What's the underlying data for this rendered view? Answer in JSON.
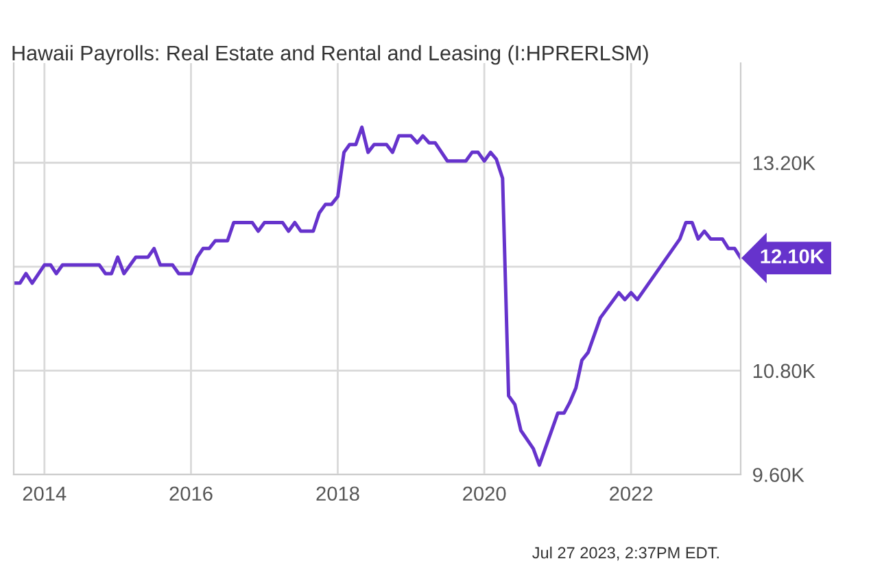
{
  "chart_data": {
    "type": "line",
    "title": "Hawaii Payrolls: Real Estate and Rental and Leasing (I:HPRERLSM)",
    "x": [
      "2013-08",
      "2013-09",
      "2013-10",
      "2013-11",
      "2014-01",
      "2014-02",
      "2014-03",
      "2014-04",
      "2014-10",
      "2014-11",
      "2014-12",
      "2015-01",
      "2015-02",
      "2015-04",
      "2015-06",
      "2015-07",
      "2015-08",
      "2015-10",
      "2015-11",
      "2016-01",
      "2016-02",
      "2016-03",
      "2016-04",
      "2016-05",
      "2016-07",
      "2016-08",
      "2016-11",
      "2016-12",
      "2017-01",
      "2017-04",
      "2017-05",
      "2017-06",
      "2017-07",
      "2017-09",
      "2017-10",
      "2017-11",
      "2017-12",
      "2018-01",
      "2018-02",
      "2018-03",
      "2018-04",
      "2018-05",
      "2018-06",
      "2018-07",
      "2018-09",
      "2018-10",
      "2018-11",
      "2019-01",
      "2019-02",
      "2019-03",
      "2019-04",
      "2019-05",
      "2019-07",
      "2019-10",
      "2019-11",
      "2019-12",
      "2020-01",
      "2020-02",
      "2020-03",
      "2020-04",
      "2020-05",
      "2020-06",
      "2020-07",
      "2020-09",
      "2020-10",
      "2021-01",
      "2021-02",
      "2021-03",
      "2021-04",
      "2021-05",
      "2021-06",
      "2021-08",
      "2021-11",
      "2021-12",
      "2022-01",
      "2022-02",
      "2022-09",
      "2022-10",
      "2022-11",
      "2022-12",
      "2023-01",
      "2023-02",
      "2023-04",
      "2023-05",
      "2023-06",
      "2023-07"
    ],
    "series": [
      {
        "color": "#6633cc",
        "values": [
          11.81,
          11.81,
          11.92,
          11.81,
          12.02,
          12.02,
          11.92,
          12.02,
          12.02,
          11.92,
          11.92,
          12.11,
          11.92,
          12.11,
          12.11,
          12.21,
          12.02,
          12.02,
          11.92,
          11.92,
          12.11,
          12.21,
          12.21,
          12.3,
          12.3,
          12.51,
          12.51,
          12.41,
          12.51,
          12.51,
          12.41,
          12.51,
          12.41,
          12.41,
          12.62,
          12.72,
          12.72,
          12.81,
          13.32,
          13.41,
          13.41,
          13.61,
          13.32,
          13.41,
          13.41,
          13.32,
          13.51,
          13.51,
          13.43,
          13.51,
          13.43,
          13.43,
          13.22,
          13.22,
          13.32,
          13.32,
          13.22,
          13.32,
          13.24,
          13.02,
          10.51,
          10.41,
          10.11,
          9.9,
          9.71,
          10.31,
          10.31,
          10.43,
          10.6,
          10.92,
          11.01,
          11.41,
          11.7,
          11.62,
          11.7,
          11.62,
          12.32,
          12.51,
          12.51,
          12.32,
          12.41,
          12.32,
          12.32,
          12.21,
          12.21,
          12.1
        ]
      }
    ],
    "xlim": [
      "2013-08",
      "2023-07"
    ],
    "xticks": [
      {
        "value": "2014-01-01",
        "label": "2014"
      },
      {
        "value": "2016-01-01",
        "label": "2016"
      },
      {
        "value": "2018-01-01",
        "label": "2018"
      },
      {
        "value": "2020-01-01",
        "label": "2020"
      },
      {
        "value": "2022-01-01",
        "label": "2022"
      }
    ],
    "ylim": [
      9.6,
      14.35
    ],
    "yticks": [
      {
        "value": 9.6,
        "label": "9.60K"
      },
      {
        "value": 10.8,
        "label": "10.80K"
      },
      {
        "value": 12.0,
        "label": null
      },
      {
        "value": 13.2,
        "label": "13.20K"
      }
    ],
    "grid": true,
    "legend": false,
    "marker": "none",
    "line_style": "solid",
    "annotations": [
      {
        "text": "12.10K",
        "x": "2023-07",
        "y": 12.1
      },
      "Jul 27 2023, 2:37PM EDT."
    ]
  }
}
